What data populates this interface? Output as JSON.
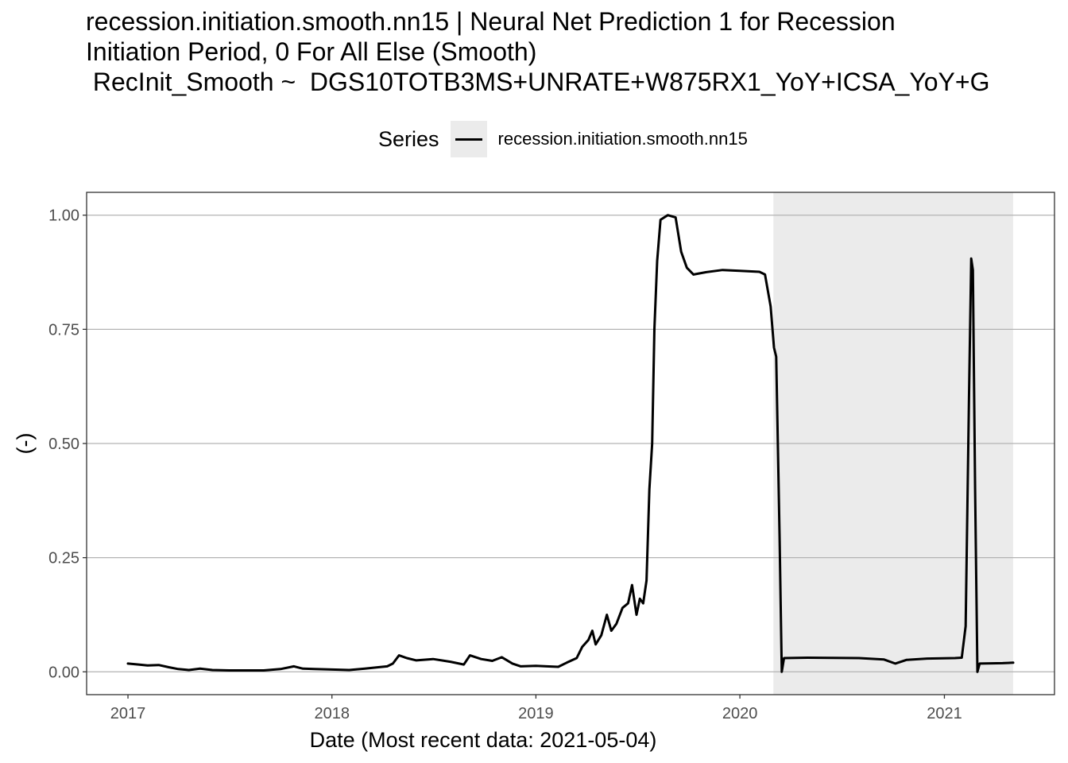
{
  "chart_data": {
    "type": "line",
    "title_lines": [
      "recession.initiation.smooth.nn15 | Neural Net Prediction 1 for Recession",
      "Initiation Period, 0 For All Else (Smooth)",
      " RecInit_Smooth ~  DGS10TOTB3MS+UNRATE+W875RX1_YoY+ICSA_YoY+G"
    ],
    "legend": {
      "title": "Series",
      "placement": "top"
    },
    "xlabel": "Date (Most recent data: 2021-05-04)",
    "ylabel": "(-)",
    "xlim": [
      "2016-10-19",
      "2021-07-17"
    ],
    "ylim": [
      -0.05,
      1.05
    ],
    "x_ticks": [
      {
        "date": "2017-01-01",
        "label": "2017"
      },
      {
        "date": "2018-01-01",
        "label": "2018"
      },
      {
        "date": "2019-01-01",
        "label": "2019"
      },
      {
        "date": "2020-01-01",
        "label": "2020"
      },
      {
        "date": "2021-01-01",
        "label": "2021"
      }
    ],
    "y_ticks": [
      {
        "value": 0,
        "label": "0.00"
      },
      {
        "value": 0.25,
        "label": "0.25"
      },
      {
        "value": 0.5,
        "label": "0.50"
      },
      {
        "value": 0.75,
        "label": "0.75"
      },
      {
        "value": 1,
        "label": "1.00"
      }
    ],
    "grid": true,
    "shaded_regions": [
      {
        "start": "2020-03-01",
        "end": "2021-05-04",
        "color": "#ebebeb"
      }
    ],
    "series": [
      {
        "name": "recession.initiation.smooth.nn15",
        "color": "#000000",
        "points": [
          [
            "2017-01-01",
            0.018
          ],
          [
            "2017-01-20",
            0.016
          ],
          [
            "2017-02-05",
            0.014
          ],
          [
            "2017-02-25",
            0.015
          ],
          [
            "2017-03-15",
            0.01
          ],
          [
            "2017-04-01",
            0.006
          ],
          [
            "2017-04-20",
            0.004
          ],
          [
            "2017-05-10",
            0.007
          ],
          [
            "2017-06-01",
            0.004
          ],
          [
            "2017-07-01",
            0.003
          ],
          [
            "2017-08-01",
            0.003
          ],
          [
            "2017-09-01",
            0.003
          ],
          [
            "2017-10-01",
            0.006
          ],
          [
            "2017-10-25",
            0.012
          ],
          [
            "2017-11-10",
            0.007
          ],
          [
            "2017-12-01",
            0.006
          ],
          [
            "2018-01-01",
            0.005
          ],
          [
            "2018-02-01",
            0.004
          ],
          [
            "2018-03-01",
            0.007
          ],
          [
            "2018-03-25",
            0.01
          ],
          [
            "2018-04-10",
            0.012
          ],
          [
            "2018-04-20",
            0.018
          ],
          [
            "2018-05-01",
            0.036
          ],
          [
            "2018-05-15",
            0.03
          ],
          [
            "2018-06-01",
            0.025
          ],
          [
            "2018-07-01",
            0.028
          ],
          [
            "2018-08-01",
            0.022
          ],
          [
            "2018-08-25",
            0.016
          ],
          [
            "2018-09-05",
            0.036
          ],
          [
            "2018-09-25",
            0.028
          ],
          [
            "2018-10-15",
            0.024
          ],
          [
            "2018-11-01",
            0.032
          ],
          [
            "2018-11-20",
            0.018
          ],
          [
            "2018-12-05",
            0.012
          ],
          [
            "2019-01-01",
            0.013
          ],
          [
            "2019-01-20",
            0.012
          ],
          [
            "2019-02-10",
            0.011
          ],
          [
            "2019-02-25",
            0.02
          ],
          [
            "2019-03-15",
            0.03
          ],
          [
            "2019-03-25",
            0.055
          ],
          [
            "2019-04-05",
            0.07
          ],
          [
            "2019-04-12",
            0.09
          ],
          [
            "2019-04-18",
            0.06
          ],
          [
            "2019-04-28",
            0.08
          ],
          [
            "2019-05-08",
            0.125
          ],
          [
            "2019-05-16",
            0.09
          ],
          [
            "2019-05-25",
            0.105
          ],
          [
            "2019-06-05",
            0.14
          ],
          [
            "2019-06-15",
            0.15
          ],
          [
            "2019-06-22",
            0.19
          ],
          [
            "2019-06-30",
            0.125
          ],
          [
            "2019-07-06",
            0.16
          ],
          [
            "2019-07-12",
            0.15
          ],
          [
            "2019-07-18",
            0.2
          ],
          [
            "2019-07-23",
            0.4
          ],
          [
            "2019-07-28",
            0.5
          ],
          [
            "2019-08-01",
            0.75
          ],
          [
            "2019-08-06",
            0.9
          ],
          [
            "2019-08-12",
            0.99
          ],
          [
            "2019-08-25",
            1.0
          ],
          [
            "2019-09-08",
            0.995
          ],
          [
            "2019-09-18",
            0.92
          ],
          [
            "2019-09-28",
            0.885
          ],
          [
            "2019-10-10",
            0.87
          ],
          [
            "2019-11-01",
            0.875
          ],
          [
            "2019-12-01",
            0.88
          ],
          [
            "2020-01-01",
            0.878
          ],
          [
            "2020-02-05",
            0.876
          ],
          [
            "2020-02-15",
            0.87
          ],
          [
            "2020-02-25",
            0.8
          ],
          [
            "2020-03-02",
            0.71
          ],
          [
            "2020-03-06",
            0.69
          ],
          [
            "2020-03-12",
            0.3
          ],
          [
            "2020-03-16",
            0.0
          ],
          [
            "2020-03-20",
            0.03
          ],
          [
            "2020-05-01",
            0.031
          ],
          [
            "2020-08-01",
            0.03
          ],
          [
            "2020-09-15",
            0.027
          ],
          [
            "2020-10-05",
            0.018
          ],
          [
            "2020-10-25",
            0.026
          ],
          [
            "2020-12-01",
            0.029
          ],
          [
            "2021-01-20",
            0.03
          ],
          [
            "2021-02-01",
            0.031
          ],
          [
            "2021-02-08",
            0.1
          ],
          [
            "2021-02-14",
            0.6
          ],
          [
            "2021-02-18",
            0.905
          ],
          [
            "2021-02-21",
            0.88
          ],
          [
            "2021-02-25",
            0.4
          ],
          [
            "2021-03-01",
            0.0
          ],
          [
            "2021-03-05",
            0.018
          ],
          [
            "2021-04-15",
            0.019
          ],
          [
            "2021-05-04",
            0.02
          ]
        ]
      }
    ]
  }
}
